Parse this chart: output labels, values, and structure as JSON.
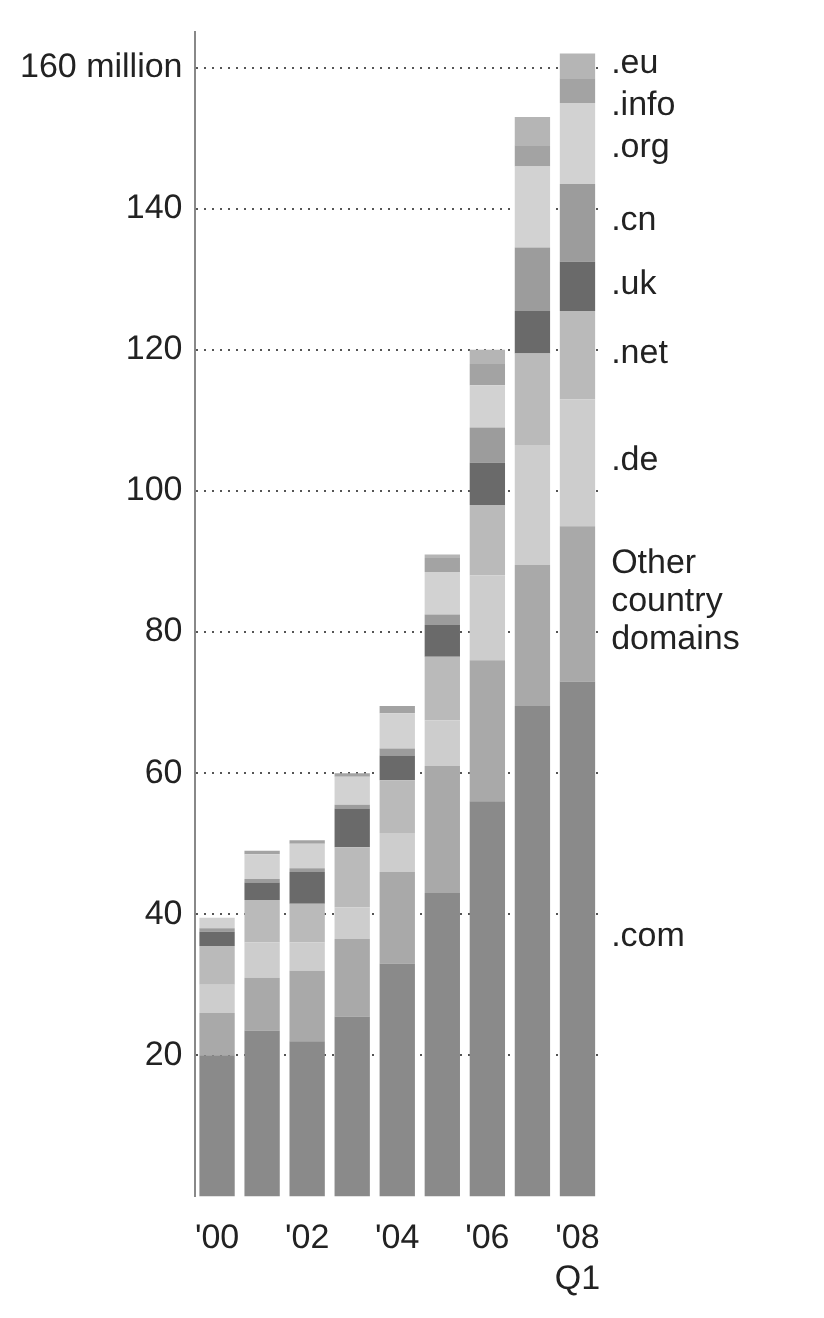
{
  "chart_data": {
    "type": "bar",
    "stacked": true,
    "legend": false,
    "grid": "y",
    "categories": [
      "'00",
      null,
      "'02",
      null,
      "'04",
      null,
      "'06",
      null,
      "'08 Q1"
    ],
    "ylim": [
      0,
      165
    ],
    "yticks": [
      20,
      40,
      60,
      80,
      100,
      120,
      140,
      {
        "value": 160,
        "label": "160 million"
      }
    ],
    "series": [
      {
        "name": ".com",
        "color": "#8a8a8a",
        "values": [
          20,
          23.5,
          22,
          25.5,
          33,
          43,
          56,
          69.5,
          73
        ]
      },
      {
        "name": "Other country domains",
        "color": "#a9a9a9",
        "values": [
          6,
          7.5,
          10,
          11,
          13,
          18,
          20,
          20,
          22
        ]
      },
      {
        "name": ".de",
        "color": "#cdcdcd",
        "values": [
          4,
          5,
          4,
          4.5,
          5.5,
          6.5,
          12,
          17,
          18
        ]
      },
      {
        "name": ".net",
        "color": "#bababa",
        "values": [
          5.5,
          6,
          5.5,
          8.5,
          7.5,
          9,
          10,
          13,
          12.5
        ]
      },
      {
        "name": ".uk",
        "color": "#6a6a6a",
        "values": [
          2,
          2.5,
          4.5,
          5.5,
          3.5,
          4.5,
          6,
          6,
          7
        ]
      },
      {
        "name": ".cn",
        "color": "#9c9c9c",
        "values": [
          0.5,
          0.5,
          0.5,
          0.5,
          1,
          1.5,
          5,
          9,
          11
        ]
      },
      {
        "name": ".org",
        "color": "#d2d2d2",
        "values": [
          1.5,
          3.5,
          3.5,
          4,
          5,
          6,
          6,
          11.5,
          11.5
        ]
      },
      {
        "name": ".info",
        "color": "#a3a3a3",
        "values": [
          0,
          0.5,
          0.5,
          0.5,
          1,
          2,
          3,
          3,
          3.5
        ]
      },
      {
        "name": ".eu",
        "color": "#b5b5b5",
        "values": [
          0,
          0,
          0,
          0,
          0,
          0.5,
          2,
          4,
          3.5
        ]
      }
    ]
  }
}
